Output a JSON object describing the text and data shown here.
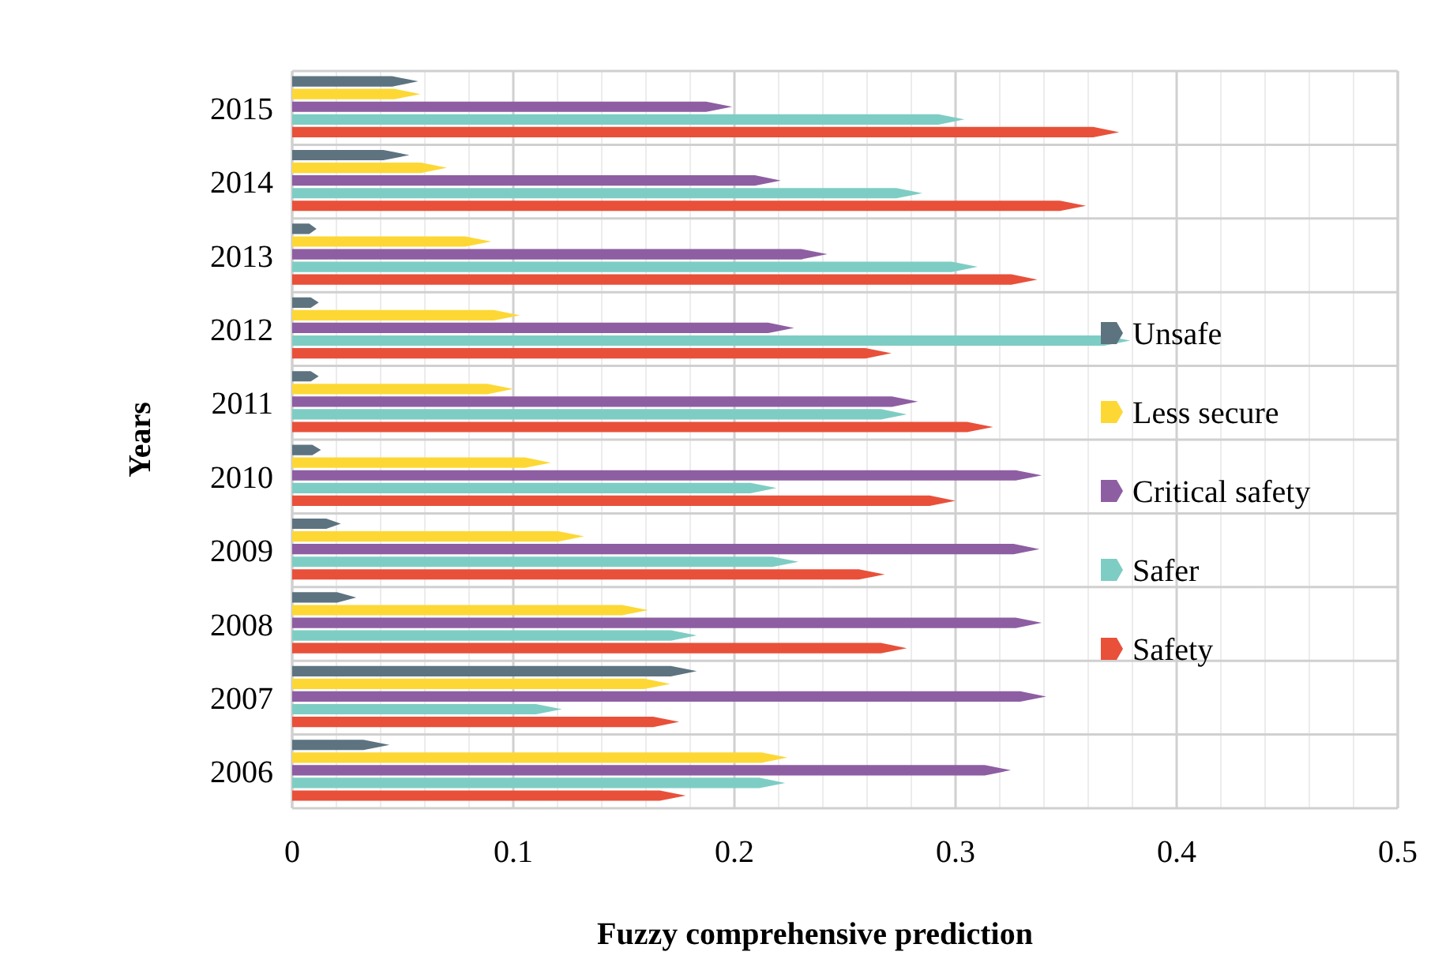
{
  "chart_data": {
    "type": "bar",
    "orientation": "horizontal",
    "xlabel": "Fuzzy comprehensive prediction",
    "ylabel": "Years",
    "categories": [
      "2015",
      "2014",
      "2013",
      "2012",
      "2011",
      "2010",
      "2009",
      "2008",
      "2007",
      "2006"
    ],
    "series": [
      {
        "name": "Unsafe",
        "color": "#5d7380",
        "values": [
          0.057,
          0.053,
          0.011,
          0.012,
          0.012,
          0.013,
          0.022,
          0.029,
          0.183,
          0.044
        ]
      },
      {
        "name": "Less secure",
        "color": "#fdd835",
        "values": [
          0.058,
          0.07,
          0.09,
          0.103,
          0.1,
          0.117,
          0.132,
          0.161,
          0.171,
          0.224
        ]
      },
      {
        "name": "Critical safety",
        "color": "#8e5ea2",
        "values": [
          0.199,
          0.221,
          0.242,
          0.227,
          0.283,
          0.339,
          0.338,
          0.339,
          0.341,
          0.325
        ]
      },
      {
        "name": "Safer",
        "color": "#7ecdc4",
        "values": [
          0.304,
          0.285,
          0.31,
          0.379,
          0.278,
          0.219,
          0.229,
          0.183,
          0.122,
          0.223
        ]
      },
      {
        "name": "Safety",
        "color": "#e8503a",
        "values": [
          0.374,
          0.359,
          0.337,
          0.271,
          0.317,
          0.3,
          0.268,
          0.278,
          0.175,
          0.178
        ]
      }
    ],
    "xlim": [
      0,
      0.5
    ],
    "xticks": [
      0,
      {
        "value": 0.02,
        "label": null
      },
      {
        "value": 0.04,
        "label": null
      },
      {
        "value": 0.06,
        "label": null
      },
      {
        "value": 0.08,
        "label": null
      },
      0.1,
      {
        "value": 0.12,
        "label": null
      },
      {
        "value": 0.14,
        "label": null
      },
      {
        "value": 0.16,
        "label": null
      },
      {
        "value": 0.18,
        "label": null
      },
      0.2,
      {
        "value": 0.22,
        "label": null
      },
      {
        "value": 0.24,
        "label": null
      },
      {
        "value": 0.26,
        "label": null
      },
      {
        "value": 0.28,
        "label": null
      },
      0.3,
      {
        "value": 0.32,
        "label": null
      },
      {
        "value": 0.34,
        "label": null
      },
      {
        "value": 0.36,
        "label": null
      },
      {
        "value": 0.38,
        "label": null
      },
      0.4,
      {
        "value": 0.42,
        "label": null
      },
      {
        "value": 0.44,
        "label": null
      },
      {
        "value": 0.46,
        "label": null
      },
      {
        "value": 0.48,
        "label": null
      },
      0.5
    ],
    "grid": "x",
    "legend": "right"
  }
}
